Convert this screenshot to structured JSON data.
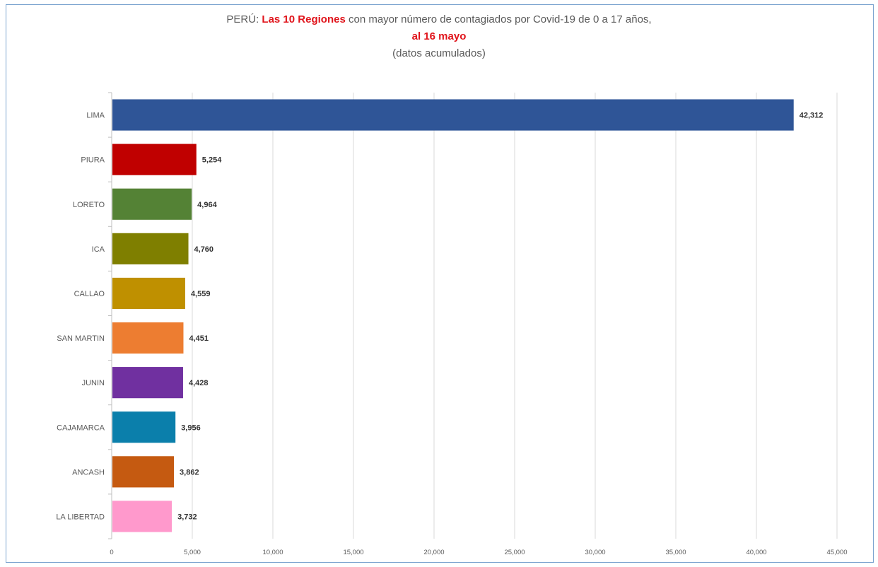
{
  "title": {
    "part1": "PERÚ: ",
    "part2": "Las 10 Regiones",
    "part3": " con mayor número de contagiados por Covid-19 de 0 a 17 años,",
    "line2": "al 16 mayo",
    "line3": "(datos acumulados)"
  },
  "chart_data": {
    "type": "bar",
    "orientation": "horizontal",
    "categories": [
      "LIMA",
      "PIURA",
      "LORETO",
      "ICA",
      "CALLAO",
      "SAN MARTIN",
      "JUNIN",
      "CAJAMARCA",
      "ANCASH",
      "LA LIBERTAD"
    ],
    "values": [
      42312,
      5254,
      4964,
      4760,
      4559,
      4451,
      4428,
      3956,
      3862,
      3732
    ],
    "data_labels": [
      "42,312",
      "5,254",
      "4,964",
      "4,760",
      "4,559",
      "4,451",
      "4,428",
      "3,956",
      "3,862",
      "3,732"
    ],
    "colors": [
      "#2f5597",
      "#c00000",
      "#548235",
      "#7f7f00",
      "#bf9000",
      "#ed7d31",
      "#7030a0",
      "#0b7fab",
      "#c55a11",
      "#ff99cc"
    ],
    "xlim": [
      0,
      45000
    ],
    "xticks": [
      0,
      5000,
      10000,
      15000,
      20000,
      25000,
      30000,
      35000,
      40000,
      45000
    ],
    "xtick_labels": [
      "0",
      "5,000",
      "10,000",
      "15,000",
      "20,000",
      "25,000",
      "30,000",
      "35,000",
      "40,000",
      "45,000"
    ],
    "grid": true,
    "legend": "none",
    "title": "PERÚ: Las 10 Regiones con mayor número de contagiados por Covid-19 de 0 a 17 años, al 16 mayo (datos acumulados)",
    "xlabel": "",
    "ylabel": ""
  }
}
